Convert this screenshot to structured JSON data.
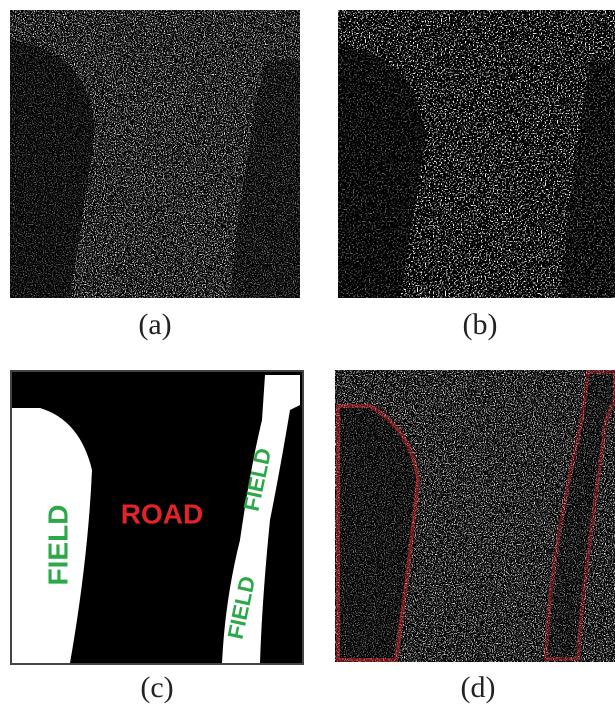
{
  "panels": [
    {
      "caption": "(a)"
    },
    {
      "caption": "(b)"
    },
    {
      "caption": "(c)",
      "labels": [
        "FIELD",
        "ROAD",
        "FIELD",
        "FIELD"
      ]
    },
    {
      "caption": "(d)"
    }
  ]
}
